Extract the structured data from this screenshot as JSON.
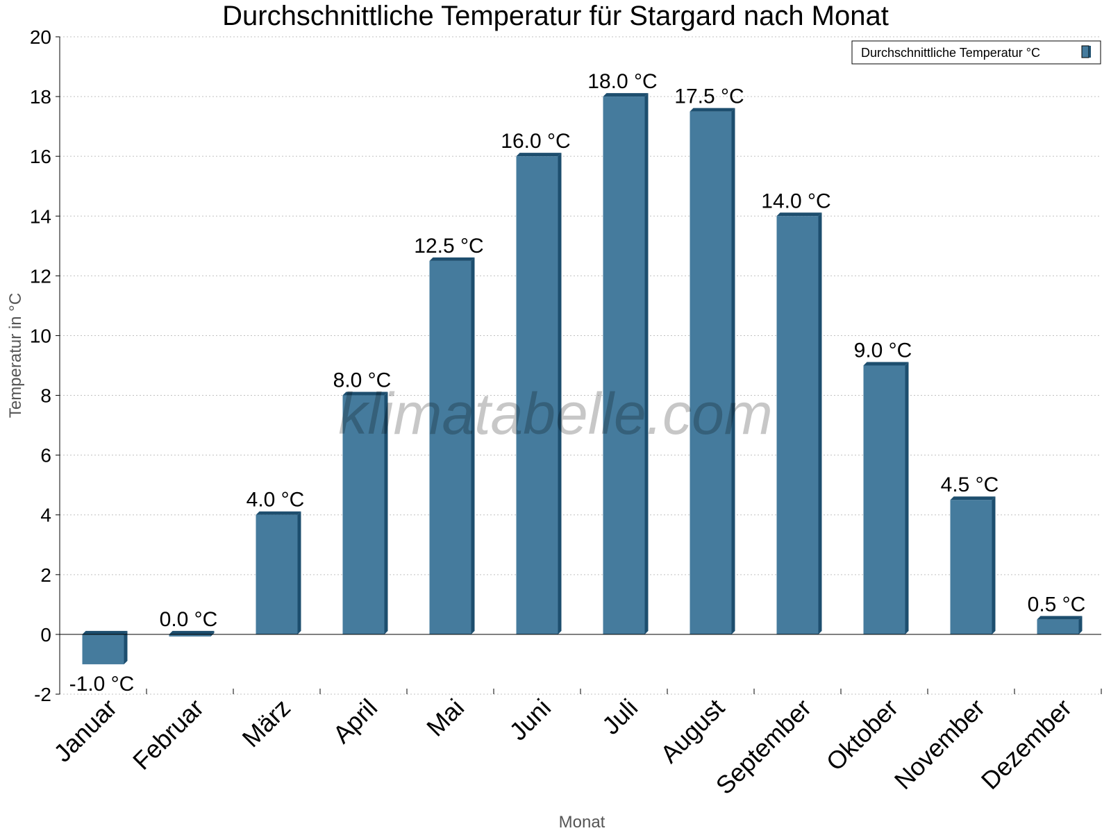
{
  "colors": {
    "bar_face": "#457b9d",
    "bar_side": "#1d4e6e",
    "bar_top": "#1d4e6e",
    "grid": "#c0c0c0",
    "axis": "#000000"
  },
  "watermark": "klimatabelle.com",
  "chart_data": {
    "type": "bar",
    "title": "Durchschnittliche Temperatur für Stargard nach Monat",
    "xlabel": "Monat",
    "ylabel": "Temperatur in °C",
    "categories": [
      "Januar",
      "Februar",
      "März",
      "April",
      "Mai",
      "Juni",
      "Juli",
      "August",
      "September",
      "Oktober",
      "November",
      "Dezember"
    ],
    "series": [
      {
        "name": "Durchschnittliche Temperatur °C",
        "values": [
          -1.0,
          0.0,
          4.0,
          8.0,
          12.5,
          16.0,
          18.0,
          17.5,
          14.0,
          9.0,
          4.5,
          0.5
        ]
      }
    ],
    "data_labels": [
      "-1.0 °C",
      "0.0 °C",
      "4.0 °C",
      "8.0 °C",
      "12.5 °C",
      "16.0 °C",
      "18.0 °C",
      "17.5 °C",
      "14.0 °C",
      "9.0 °C",
      "4.5 °C",
      "0.5 °C"
    ],
    "yticks": [
      -2,
      0,
      2,
      4,
      6,
      8,
      10,
      12,
      14,
      16,
      18,
      20
    ],
    "ylim": [
      -2,
      20
    ],
    "grid": true,
    "legend_position": "top-right"
  }
}
